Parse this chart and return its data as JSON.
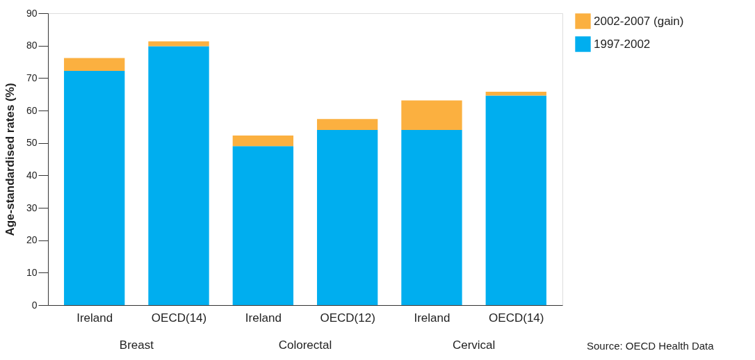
{
  "chart_data": {
    "type": "bar",
    "stacked": true,
    "ylabel": "Age-standardised rates (%)",
    "categories": [
      "Ireland",
      "OECD(14)",
      "Ireland",
      "OECD(12)",
      "Ireland",
      "OECD(14)"
    ],
    "series": [
      {
        "name": "1997-2002",
        "color": "#00aeef",
        "values": [
          72.2,
          79.8,
          49.0,
          54.0,
          54.0,
          64.6
        ]
      },
      {
        "name": "2002-2007 (gain)",
        "color": "#fbb040",
        "values": [
          4.0,
          1.5,
          3.3,
          3.4,
          9.1,
          1.2
        ]
      }
    ],
    "ylim": [
      0,
      90
    ],
    "yticks": [
      0,
      10,
      20,
      30,
      40,
      50,
      60,
      70,
      80,
      90
    ],
    "grid": false,
    "legend": "right",
    "annotations": [
      "Breast",
      "Colorectal",
      "Cervical",
      "Source: OECD Health Data"
    ]
  }
}
